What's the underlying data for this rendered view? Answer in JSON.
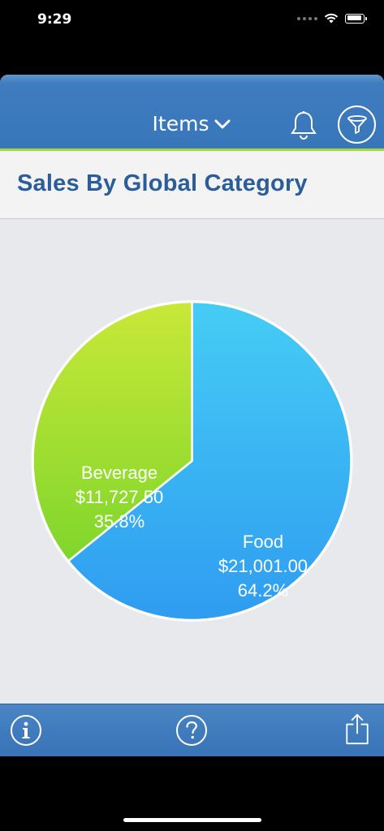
{
  "status_bar": {
    "time": "9:29"
  },
  "nav": {
    "title": "Items",
    "icons": [
      "chevron-down-icon",
      "bell-icon",
      "filter-icon"
    ]
  },
  "header": {
    "title": "Sales By Global Category"
  },
  "toolbar": {
    "icons": [
      "info-icon",
      "help-icon",
      "share-icon"
    ]
  },
  "colors": {
    "nav_blue": "#3876ba",
    "accent_green": "#a3d63f",
    "title_blue": "#2a5d9a",
    "food_top": "#45cdf5",
    "food_bottom": "#2f9cf0",
    "beverage_top": "#c9e838",
    "beverage_bottom": "#7fd62c"
  },
  "chart_data": {
    "type": "pie",
    "title": "Sales By Global Category",
    "slices": [
      {
        "name": "Food",
        "value": 21001.0,
        "value_label": "$21,001.00",
        "percent": 64.2,
        "percent_label": "64.2%"
      },
      {
        "name": "Beverage",
        "value": 11727.5,
        "value_label": "$11,727.50",
        "percent": 35.8,
        "percent_label": "35.8%"
      }
    ]
  }
}
